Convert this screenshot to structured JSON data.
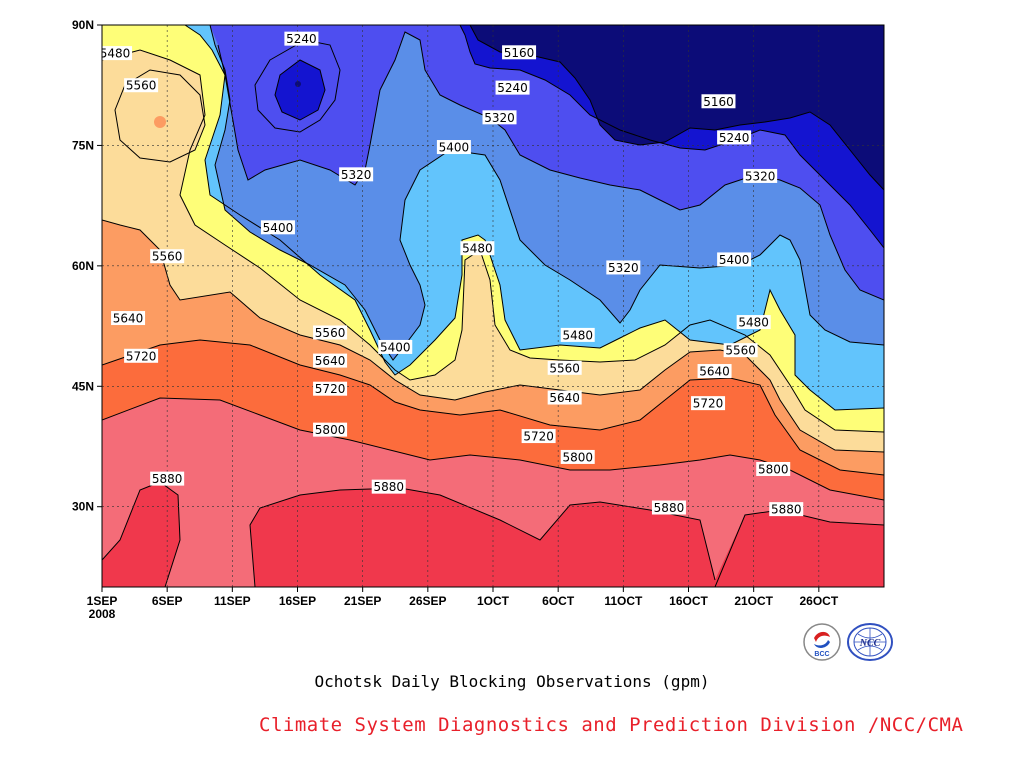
{
  "chart_data": {
    "type": "contour",
    "title": "Ochotsk Daily Blocking Observations (gpm)",
    "x_ticks": [
      "1SEP",
      "6SEP",
      "11SEP",
      "16SEP",
      "21SEP",
      "26SEP",
      "1OCT",
      "6OCT",
      "11OCT",
      "16OCT",
      "21OCT",
      "26OCT"
    ],
    "x_year_label": "2008",
    "y_ticks": [
      "30N",
      "45N",
      "60N",
      "75N",
      "90N"
    ],
    "y_tick_values": [
      30,
      45,
      60,
      75,
      90
    ],
    "ylim": [
      20,
      90
    ],
    "xlim_days": [
      0,
      60
    ],
    "grid": true,
    "contour_levels": [
      5160,
      5240,
      5320,
      5400,
      5480,
      5560,
      5640,
      5720,
      5800,
      5880
    ],
    "contour_labels": [
      {
        "text": "5480",
        "day": 1.0,
        "lat": 86.5
      },
      {
        "text": "5560",
        "day": 3.0,
        "lat": 82.5
      },
      {
        "text": "5240",
        "day": 15.3,
        "lat": 88.3
      },
      {
        "text": "5160",
        "day": 32.0,
        "lat": 86.6
      },
      {
        "text": "5240",
        "day": 31.5,
        "lat": 82.2
      },
      {
        "text": "5320",
        "day": 30.5,
        "lat": 78.5
      },
      {
        "text": "5400",
        "day": 27.0,
        "lat": 74.8
      },
      {
        "text": "5320",
        "day": 19.5,
        "lat": 71.4
      },
      {
        "text": "5160",
        "day": 47.3,
        "lat": 80.5
      },
      {
        "text": "5240",
        "day": 48.5,
        "lat": 76.0
      },
      {
        "text": "5320",
        "day": 50.5,
        "lat": 71.2
      },
      {
        "text": "5400",
        "day": 13.5,
        "lat": 64.8
      },
      {
        "text": "5560",
        "day": 5.0,
        "lat": 61.2
      },
      {
        "text": "5480",
        "day": 28.8,
        "lat": 62.2
      },
      {
        "text": "5320",
        "day": 40.0,
        "lat": 59.8
      },
      {
        "text": "5400",
        "day": 48.5,
        "lat": 60.8
      },
      {
        "text": "5480",
        "day": 50.0,
        "lat": 53.0
      },
      {
        "text": "5640",
        "day": 2.0,
        "lat": 53.5
      },
      {
        "text": "5560",
        "day": 17.5,
        "lat": 51.7
      },
      {
        "text": "5400",
        "day": 22.5,
        "lat": 49.9
      },
      {
        "text": "5480",
        "day": 36.5,
        "lat": 51.4
      },
      {
        "text": "5560",
        "day": 49.0,
        "lat": 49.5
      },
      {
        "text": "5720",
        "day": 3.0,
        "lat": 48.8
      },
      {
        "text": "5640",
        "day": 17.5,
        "lat": 48.2
      },
      {
        "text": "5560",
        "day": 35.5,
        "lat": 47.3
      },
      {
        "text": "5640",
        "day": 47.0,
        "lat": 46.9
      },
      {
        "text": "5720",
        "day": 17.5,
        "lat": 44.7
      },
      {
        "text": "5640",
        "day": 35.5,
        "lat": 43.6
      },
      {
        "text": "5720",
        "day": 46.5,
        "lat": 42.9
      },
      {
        "text": "5800",
        "day": 17.5,
        "lat": 39.6
      },
      {
        "text": "5720",
        "day": 33.5,
        "lat": 38.8
      },
      {
        "text": "5800",
        "day": 36.5,
        "lat": 36.2
      },
      {
        "text": "5800",
        "day": 51.5,
        "lat": 34.7
      },
      {
        "text": "5880",
        "day": 5.0,
        "lat": 33.5
      },
      {
        "text": "5880",
        "day": 22.0,
        "lat": 32.5
      },
      {
        "text": "5880",
        "day": 43.5,
        "lat": 29.9
      },
      {
        "text": "5880",
        "day": 52.5,
        "lat": 29.7
      }
    ]
  },
  "colors": {
    "5160_below": "#0c0c78",
    "5160_5240": "#1414d0",
    "5240_5320": "#4e4ef0",
    "5320_5400": "#5a8ee8",
    "5400_5480": "#62c4fc",
    "5480_5560": "#fefe78",
    "5560_5640": "#fcdc9a",
    "5640_5720": "#fc9c62",
    "5720_5800": "#fc6c3c",
    "5800_5880": "#f46c78",
    "5880_above": "#f0384c"
  },
  "footer": {
    "title": "Ochotsk Daily Blocking Observations (gpm)",
    "credit": "Climate System Diagnostics and Prediction Division /NCC/CMA",
    "logo_left_text": "BCC",
    "logo_right_text": "NCC"
  }
}
